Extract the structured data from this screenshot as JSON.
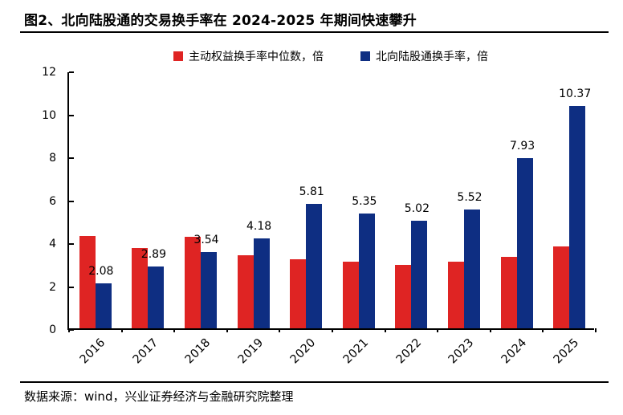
{
  "header": {
    "title": "图2、北向陆股通的交易换手率在 2024-2025 年期间快速攀升"
  },
  "footer": {
    "source": "数据来源：wind，兴业证券经济与金融研究院整理"
  },
  "colors": {
    "active_equity_red": "#df2423",
    "northbound_blue": "#0e2e82",
    "axis_black": "#000000"
  },
  "chart_data": {
    "type": "bar",
    "title": "北向陆股通的交易换手率在 2024-2025 年期间快速攀升",
    "categories": [
      "2016",
      "2017",
      "2018",
      "2019",
      "2020",
      "2021",
      "2022",
      "2023",
      "2024",
      "2025"
    ],
    "series": [
      {
        "name": "主动权益换手率中位数，倍",
        "color_key": "active_equity_red",
        "values": [
          4.3,
          3.75,
          4.27,
          3.42,
          3.2,
          3.1,
          2.97,
          3.12,
          3.32,
          3.8
        ],
        "show_labels": false
      },
      {
        "name": "北向陆股通换手率，倍",
        "color_key": "northbound_blue",
        "values": [
          2.08,
          2.89,
          3.54,
          4.18,
          5.81,
          5.35,
          5.02,
          5.52,
          7.93,
          10.37
        ],
        "value_labels": [
          "2.08",
          "2.89",
          "3.54",
          "4.18",
          "5.81",
          "5.35",
          "5.02",
          "5.52",
          "7.93",
          "10.37"
        ],
        "show_labels": true
      }
    ],
    "xlabel": "",
    "ylabel": "",
    "ylim": [
      0,
      12
    ],
    "yticks": [
      0,
      2,
      4,
      6,
      8,
      10,
      12
    ],
    "grid": false,
    "legend_position": "top-center"
  }
}
